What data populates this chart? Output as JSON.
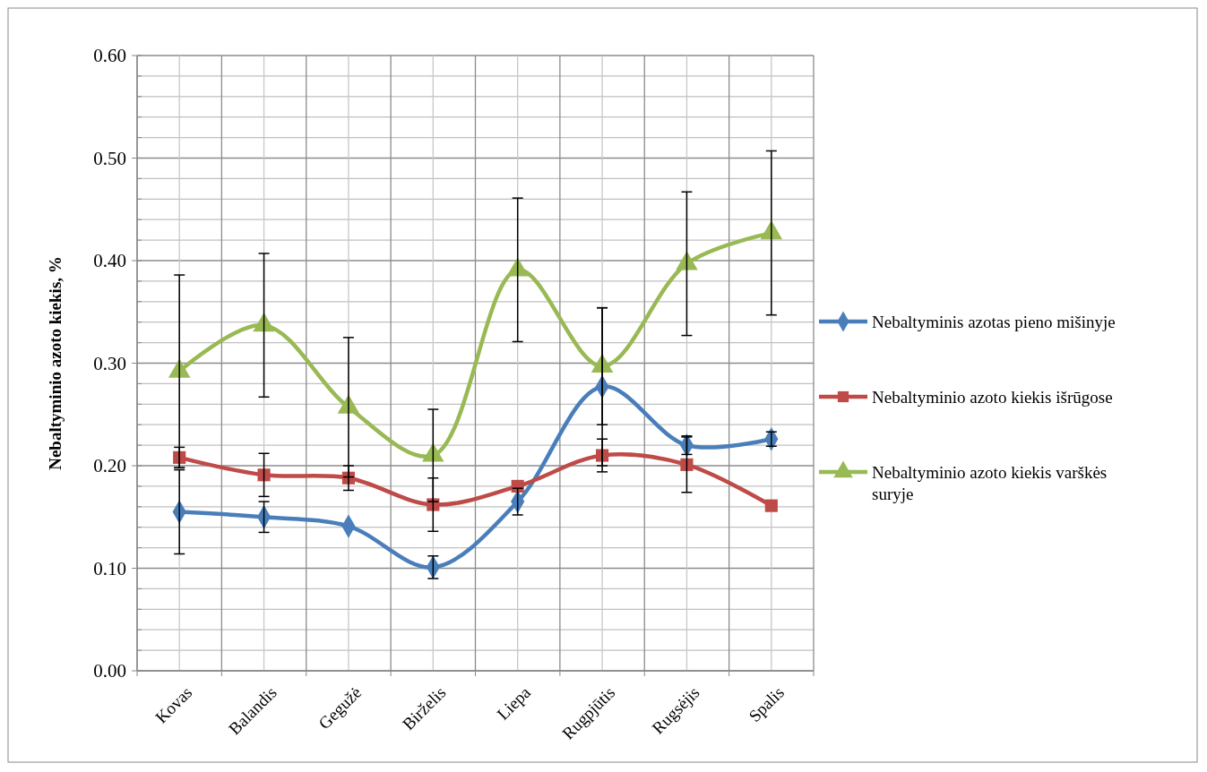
{
  "chart_data": {
    "type": "line",
    "ylabel": "Nebaltyminio azoto kiekis, %",
    "categories": [
      "Kovas",
      "Balandis",
      "Gegužė",
      "Birželis",
      "Liepa",
      "Rugpjūtis",
      "Rugsėjis",
      "Spalis"
    ],
    "ylim": [
      0,
      0.6
    ],
    "yticks": [
      {
        "value": 0,
        "label": "0.00"
      },
      {
        "value": 0.1,
        "label": "0.10"
      },
      {
        "value": 0.2,
        "label": "0.20"
      },
      {
        "value": 0.3,
        "label": "0.30"
      },
      {
        "value": 0.4,
        "label": "0.40"
      },
      {
        "value": 0.5,
        "label": "0.50"
      },
      {
        "value": 0.6,
        "label": "0.60"
      }
    ],
    "grid": true,
    "legend": "right",
    "series": [
      {
        "name": "Nebaltyminis azotas pieno mišinyje",
        "color": "#4a7ebb",
        "marker": "diamond",
        "values": [
          0.155,
          0.15,
          0.141,
          0.101,
          0.165,
          0.277,
          0.22,
          0.226
        ],
        "errors": [
          0.041,
          0.015,
          null,
          0.011,
          0.013,
          0.077,
          0.009,
          0.007
        ]
      },
      {
        "name": "Nebaltyminio azoto kiekis išrūgose",
        "color": "#be4b48",
        "marker": "square",
        "values": [
          0.208,
          0.191,
          0.188,
          0.162,
          0.18,
          0.21,
          0.201,
          0.161
        ],
        "errors": [
          0.01,
          0.021,
          0.012,
          0.026,
          null,
          0.016,
          0.027,
          null
        ]
      },
      {
        "name": "Nebaltyminio azoto kiekis varškės suryje",
        "color": "#98b954",
        "marker": "triangle",
        "values": [
          0.292,
          0.337,
          0.257,
          0.21,
          0.391,
          0.297,
          0.397,
          0.427
        ],
        "errors": [
          0.094,
          0.07,
          0.068,
          0.045,
          0.07,
          0.057,
          0.07,
          0.08
        ]
      }
    ]
  }
}
